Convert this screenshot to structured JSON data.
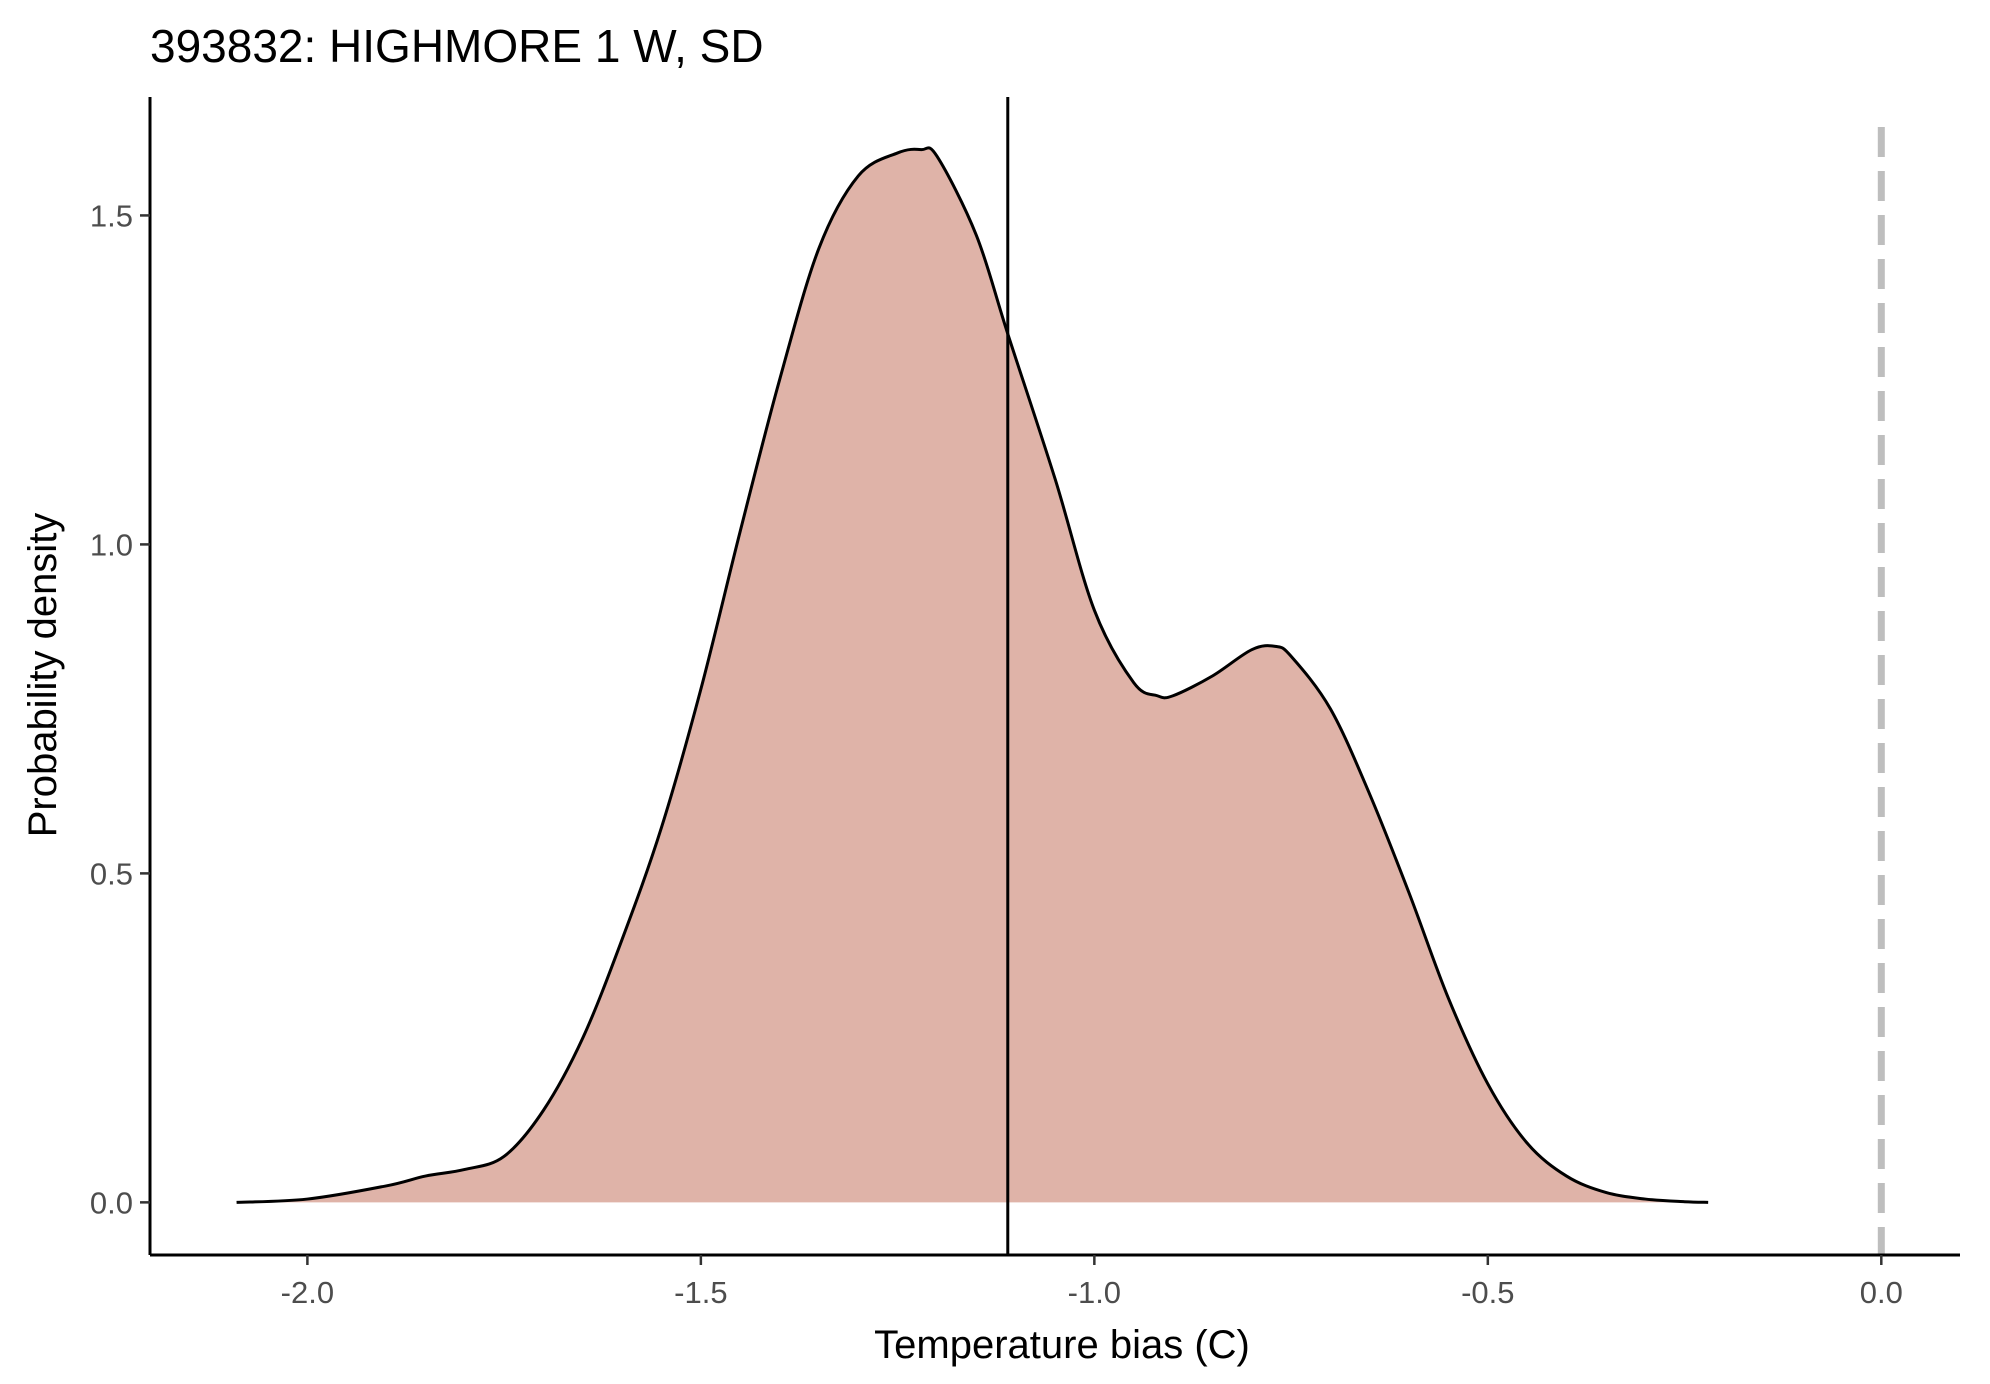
{
  "chart_data": {
    "type": "area",
    "title": "393832: HIGHMORE 1 W, SD",
    "xlabel": "Temperature bias (C)",
    "ylabel": "Probability density",
    "xlim": [
      -2.2,
      0.1
    ],
    "ylim": [
      -0.08,
      1.68
    ],
    "x_ticks": [
      -2.0,
      -1.5,
      -1.0,
      -0.5,
      0.0
    ],
    "x_tick_labels": [
      "-2.0",
      "-1.5",
      "-1.0",
      "-0.5",
      "0.0"
    ],
    "y_ticks": [
      0.0,
      0.5,
      1.0,
      1.5
    ],
    "y_tick_labels": [
      "0.0",
      "0.5",
      "1.0",
      "1.5"
    ],
    "grid": false,
    "series": [
      {
        "color": "#DFB3A8",
        "line_color": "#000000",
        "x": [
          -2.09,
          -2.0,
          -1.9,
          -1.85,
          -1.8,
          -1.75,
          -1.7,
          -1.65,
          -1.6,
          -1.55,
          -1.5,
          -1.45,
          -1.4,
          -1.35,
          -1.3,
          -1.25,
          -1.22,
          -1.2,
          -1.15,
          -1.11,
          -1.05,
          -1.0,
          -0.95,
          -0.92,
          -0.9,
          -0.85,
          -0.8,
          -0.77,
          -0.75,
          -0.7,
          -0.65,
          -0.6,
          -0.55,
          -0.5,
          -0.45,
          -0.4,
          -0.35,
          -0.3,
          -0.25,
          -0.22
        ],
        "y": [
          0.0,
          0.005,
          0.025,
          0.04,
          0.05,
          0.07,
          0.14,
          0.25,
          0.4,
          0.57,
          0.78,
          1.02,
          1.25,
          1.45,
          1.56,
          1.595,
          1.6,
          1.59,
          1.47,
          1.32,
          1.1,
          0.9,
          0.79,
          0.77,
          0.77,
          0.8,
          0.84,
          0.845,
          0.83,
          0.75,
          0.62,
          0.47,
          0.31,
          0.18,
          0.09,
          0.04,
          0.015,
          0.005,
          0.001,
          0.0
        ]
      }
    ],
    "reference_lines": [
      {
        "x": -1.11,
        "style": "solid",
        "color": "#000000"
      },
      {
        "x": 0.0,
        "style": "dashed",
        "color": "#BEBEBE"
      }
    ]
  }
}
